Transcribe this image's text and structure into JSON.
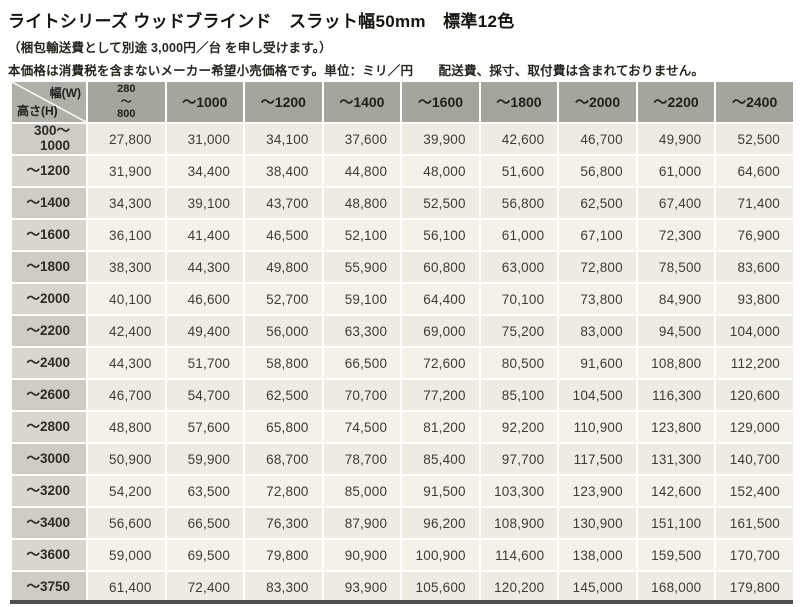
{
  "header": {
    "title": "ライトシリーズ ウッドブラインド　スラット幅50mm　標準12色",
    "shipping_note": "（梱包輸送費として別途 3,000円／台 を申し受けます。）",
    "price_note": "本価格は消費税を含まないメーカー希望小売価格です。単位：ミリ／円　　配送費、採寸、取付費は含まれておりません。"
  },
  "table": {
    "corner": {
      "width_label": "幅(W)",
      "height_label": "高さ(H)"
    },
    "column_headers": [
      "280\n～\n800",
      "～1000",
      "～1200",
      "～1400",
      "～1600",
      "～1800",
      "～2000",
      "～2200",
      "～2400"
    ],
    "rows": [
      {
        "label": "300～\n1000",
        "values": [
          "27,800",
          "31,000",
          "34,100",
          "37,600",
          "39,900",
          "42,600",
          "46,700",
          "49,900",
          "52,500"
        ]
      },
      {
        "label": "～1200",
        "values": [
          "31,900",
          "34,400",
          "38,400",
          "44,800",
          "48,000",
          "51,600",
          "56,800",
          "61,000",
          "64,600"
        ]
      },
      {
        "label": "～1400",
        "values": [
          "34,300",
          "39,100",
          "43,700",
          "48,800",
          "52,500",
          "56,800",
          "62,500",
          "67,400",
          "71,400"
        ]
      },
      {
        "label": "～1600",
        "values": [
          "36,100",
          "41,400",
          "46,500",
          "52,100",
          "56,100",
          "61,000",
          "67,100",
          "72,300",
          "76,900"
        ]
      },
      {
        "label": "～1800",
        "values": [
          "38,300",
          "44,300",
          "49,800",
          "55,900",
          "60,800",
          "63,000",
          "72,800",
          "78,500",
          "83,600"
        ]
      },
      {
        "label": "～2000",
        "values": [
          "40,100",
          "46,600",
          "52,700",
          "59,100",
          "64,400",
          "70,100",
          "73,800",
          "84,900",
          "93,800"
        ]
      },
      {
        "label": "～2200",
        "values": [
          "42,400",
          "49,400",
          "56,000",
          "63,300",
          "69,000",
          "75,200",
          "83,000",
          "94,500",
          "104,000"
        ]
      },
      {
        "label": "～2400",
        "values": [
          "44,300",
          "51,700",
          "58,800",
          "66,500",
          "72,600",
          "80,500",
          "91,600",
          "108,800",
          "112,200"
        ]
      },
      {
        "label": "～2600",
        "values": [
          "46,700",
          "54,700",
          "62,500",
          "70,700",
          "77,200",
          "85,100",
          "104,500",
          "116,300",
          "120,600"
        ]
      },
      {
        "label": "～2800",
        "values": [
          "48,800",
          "57,600",
          "65,800",
          "74,500",
          "81,200",
          "92,200",
          "110,900",
          "123,800",
          "129,000"
        ]
      },
      {
        "label": "～3000",
        "values": [
          "50,900",
          "59,900",
          "68,700",
          "78,700",
          "85,400",
          "97,700",
          "117,500",
          "131,300",
          "140,700"
        ]
      },
      {
        "label": "～3200",
        "values": [
          "54,200",
          "63,500",
          "72,800",
          "85,000",
          "91,500",
          "103,300",
          "123,900",
          "142,600",
          "152,400"
        ]
      },
      {
        "label": "～3400",
        "values": [
          "56,600",
          "66,500",
          "76,300",
          "87,900",
          "96,200",
          "108,900",
          "130,900",
          "151,100",
          "161,500"
        ]
      },
      {
        "label": "～3600",
        "values": [
          "59,000",
          "69,500",
          "79,800",
          "90,900",
          "100,900",
          "114,600",
          "138,000",
          "159,500",
          "170,700"
        ]
      },
      {
        "label": "～3750",
        "values": [
          "61,400",
          "72,400",
          "83,300",
          "93,900",
          "105,600",
          "120,200",
          "145,000",
          "168,000",
          "179,800"
        ]
      }
    ]
  },
  "colors": {
    "header_cell_bg": "#a5a59e",
    "corner_cell_bg": "#b0b0a9",
    "row_label_bg_a": "#cfccc3",
    "row_label_bg_b": "#d9d6cd",
    "cell_bg_a": "#eeece2",
    "cell_bg_b": "#f4f2e8",
    "bottom_bar": "#50504c"
  }
}
